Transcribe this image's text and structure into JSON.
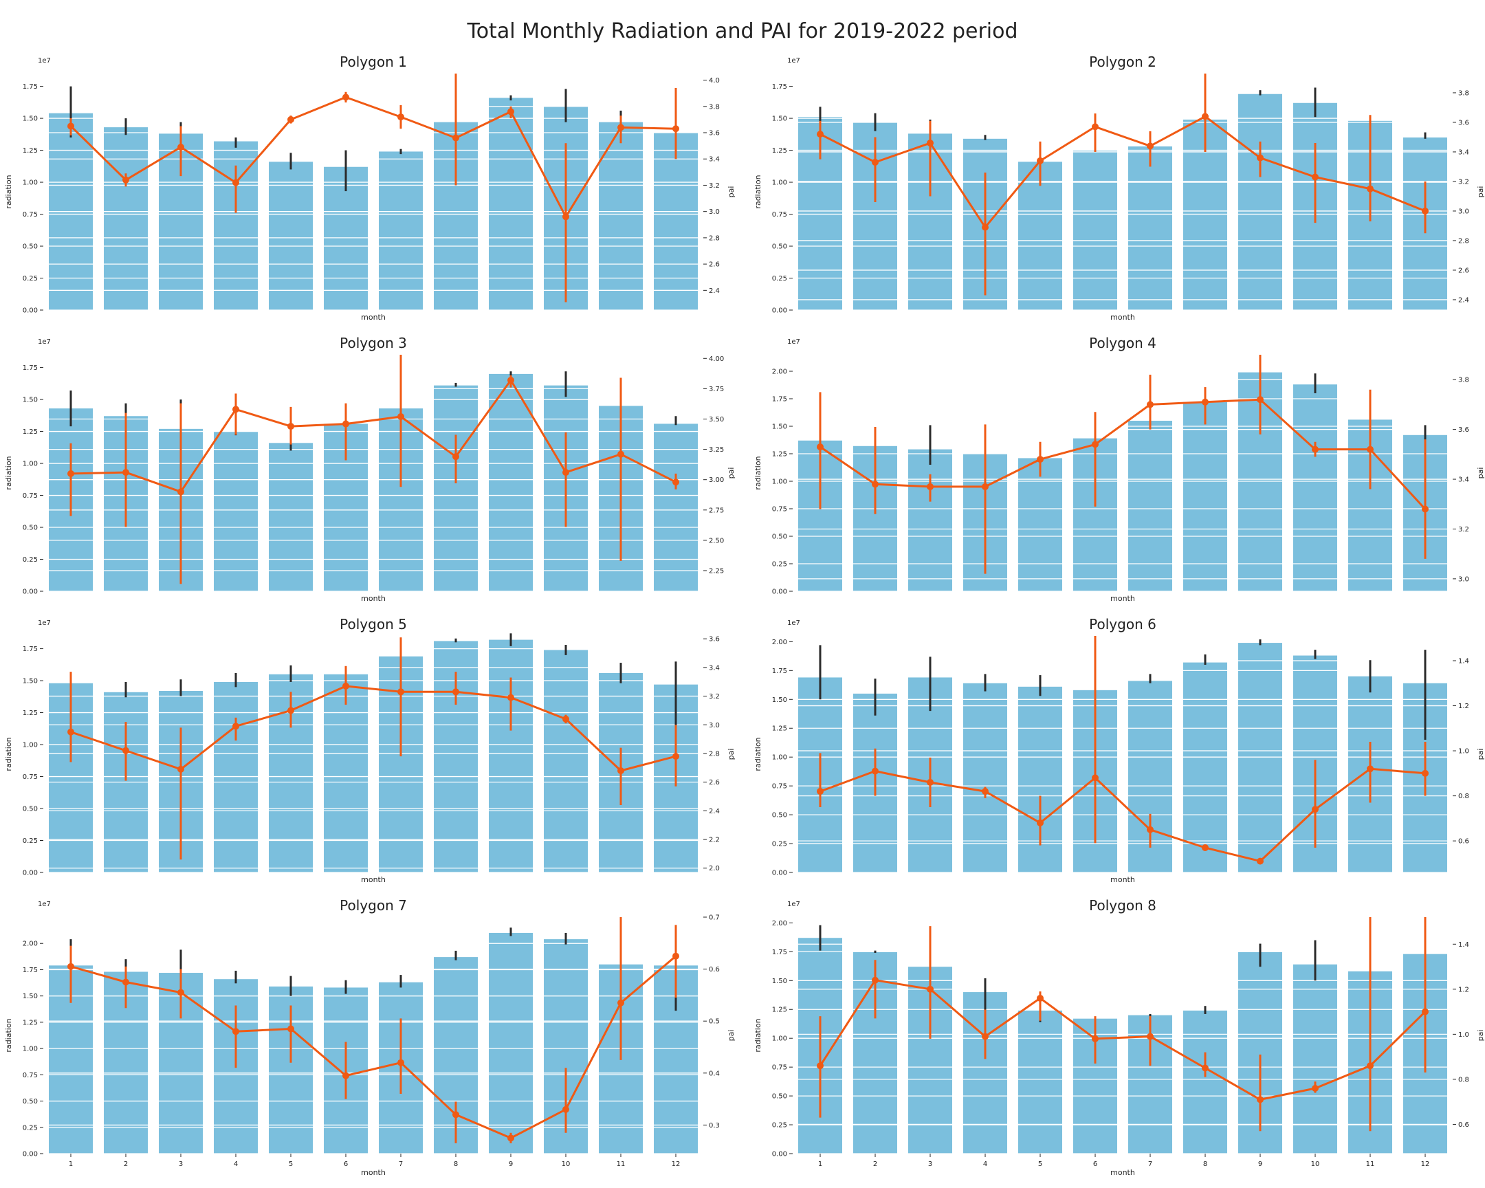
{
  "title": "Total Monthly Radiation and PAI for 2019-2022 period",
  "colors": {
    "bar": "#7bbfdd",
    "line": "#f05a14",
    "err_bar": "#2b2b2b",
    "grid": "#ffffff",
    "text": "#222222"
  },
  "chart_data": [
    {
      "type": "bar",
      "title": "Polygon 1",
      "xlabel": "month",
      "ylabel": "radiation",
      "y2label": "pai",
      "offset_text": "1e7",
      "show_x_ticks": false,
      "categories": [
        "1",
        "2",
        "3",
        "4",
        "5",
        "6",
        "7",
        "8",
        "9",
        "10",
        "11",
        "12"
      ],
      "ylim": [
        0,
        1.85
      ],
      "yticks": [
        "0.00",
        "0.25",
        "0.50",
        "0.75",
        "1.00",
        "1.25",
        "1.50",
        "1.75"
      ],
      "y2lim": [
        2.25,
        4.05
      ],
      "y2ticks": [
        "2.4",
        "2.6",
        "2.8",
        "3.0",
        "3.2",
        "3.4",
        "3.6",
        "3.8",
        "4.0"
      ],
      "series": [
        {
          "name": "radiation",
          "axis": "left",
          "values": [
            1.54,
            1.43,
            1.38,
            1.32,
            1.16,
            1.12,
            1.24,
            1.47,
            1.66,
            1.59,
            1.47,
            1.39
          ],
          "err_low": [
            1.35,
            1.37,
            1.3,
            1.27,
            1.1,
            0.93,
            1.22,
            1.4,
            1.64,
            1.47,
            1.4,
            1.38
          ],
          "err_high": [
            1.75,
            1.5,
            1.47,
            1.35,
            1.23,
            1.25,
            1.26,
            1.5,
            1.68,
            1.73,
            1.56,
            1.4
          ]
        },
        {
          "name": "pai",
          "axis": "right",
          "values": [
            3.65,
            3.24,
            3.49,
            3.22,
            3.7,
            3.87,
            3.72,
            3.56,
            3.76,
            2.96,
            3.64,
            3.63
          ],
          "err_low": [
            3.58,
            3.19,
            3.27,
            2.99,
            3.67,
            3.83,
            3.63,
            3.2,
            3.71,
            2.31,
            3.52,
            3.4
          ],
          "err_high": [
            3.71,
            3.29,
            3.65,
            3.35,
            3.73,
            3.91,
            3.81,
            4.05,
            3.8,
            3.52,
            3.73,
            3.94
          ]
        }
      ]
    },
    {
      "type": "bar",
      "title": "Polygon 2",
      "xlabel": "month",
      "ylabel": "radiation",
      "y2label": "pai",
      "offset_text": "1e7",
      "show_x_ticks": false,
      "categories": [
        "1",
        "2",
        "3",
        "4",
        "5",
        "6",
        "7",
        "8",
        "9",
        "10",
        "11",
        "12"
      ],
      "ylim": [
        0,
        1.85
      ],
      "yticks": [
        "0.00",
        "0.25",
        "0.50",
        "0.75",
        "1.00",
        "1.25",
        "1.50",
        "1.75"
      ],
      "y2lim": [
        2.33,
        3.93
      ],
      "y2ticks": [
        "2.4",
        "2.6",
        "2.8",
        "3.0",
        "3.2",
        "3.4",
        "3.6",
        "3.8"
      ],
      "series": [
        {
          "name": "radiation",
          "axis": "left",
          "values": [
            1.51,
            1.47,
            1.38,
            1.34,
            1.16,
            1.25,
            1.28,
            1.49,
            1.69,
            1.62,
            1.48,
            1.35
          ],
          "err_low": [
            1.46,
            1.4,
            1.32,
            1.33,
            1.15,
            1.24,
            1.26,
            1.46,
            1.68,
            1.51,
            1.47,
            1.34
          ],
          "err_high": [
            1.59,
            1.54,
            1.49,
            1.37,
            1.17,
            1.26,
            1.38,
            1.52,
            1.72,
            1.74,
            1.49,
            1.39
          ]
        },
        {
          "name": "pai",
          "axis": "right",
          "values": [
            3.52,
            3.33,
            3.46,
            2.89,
            3.34,
            3.57,
            3.44,
            3.64,
            3.36,
            3.23,
            3.15,
            3.0
          ],
          "err_low": [
            3.35,
            3.06,
            3.1,
            2.43,
            3.17,
            3.4,
            3.3,
            3.4,
            3.23,
            2.92,
            2.93,
            2.85
          ],
          "err_high": [
            3.61,
            3.5,
            3.61,
            3.26,
            3.47,
            3.66,
            3.54,
            3.93,
            3.47,
            3.46,
            3.65,
            3.2
          ]
        }
      ]
    },
    {
      "type": "bar",
      "title": "Polygon 3",
      "xlabel": "month",
      "ylabel": "radiation",
      "y2label": "pai",
      "offset_text": "1e7",
      "show_x_ticks": false,
      "categories": [
        "1",
        "2",
        "3",
        "4",
        "5",
        "6",
        "7",
        "8",
        "9",
        "10",
        "11",
        "12"
      ],
      "ylim": [
        0,
        1.85
      ],
      "yticks": [
        "0.00",
        "0.25",
        "0.50",
        "0.75",
        "1.00",
        "1.25",
        "1.50",
        "1.75"
      ],
      "y2lim": [
        2.08,
        4.03
      ],
      "y2ticks": [
        "2.25",
        "2.50",
        "2.75",
        "3.00",
        "3.25",
        "3.50",
        "3.75",
        "4.00"
      ],
      "series": [
        {
          "name": "radiation",
          "axis": "left",
          "values": [
            1.43,
            1.37,
            1.27,
            1.25,
            1.16,
            1.31,
            1.43,
            1.61,
            1.7,
            1.61,
            1.45,
            1.31
          ],
          "err_low": [
            1.29,
            1.3,
            1.1,
            1.22,
            1.1,
            1.28,
            1.42,
            1.6,
            1.67,
            1.52,
            1.42,
            1.3
          ],
          "err_high": [
            1.57,
            1.47,
            1.5,
            1.29,
            1.17,
            1.33,
            1.46,
            1.63,
            1.72,
            1.72,
            1.48,
            1.37
          ]
        },
        {
          "name": "pai",
          "axis": "right",
          "values": [
            3.05,
            3.06,
            2.9,
            3.58,
            3.44,
            3.46,
            3.52,
            3.19,
            3.82,
            3.06,
            3.21,
            2.98
          ],
          "err_low": [
            2.7,
            2.61,
            2.14,
            3.37,
            3.29,
            3.16,
            2.94,
            2.97,
            3.76,
            2.61,
            2.33,
            2.92
          ],
          "err_high": [
            3.3,
            3.55,
            3.63,
            3.71,
            3.6,
            3.63,
            4.03,
            3.37,
            3.86,
            3.39,
            3.84,
            3.05
          ]
        }
      ]
    },
    {
      "type": "bar",
      "title": "Polygon 4",
      "xlabel": "month",
      "ylabel": "radiation",
      "y2label": "pai",
      "offset_text": "1e7",
      "show_x_ticks": false,
      "categories": [
        "1",
        "2",
        "3",
        "4",
        "5",
        "6",
        "7",
        "8",
        "9",
        "10",
        "11",
        "12"
      ],
      "ylim": [
        0,
        2.15
      ],
      "yticks": [
        "0.00",
        "0.25",
        "0.50",
        "0.75",
        "1.00",
        "1.25",
        "1.50",
        "1.75",
        "2.00"
      ],
      "y2lim": [
        2.95,
        3.9
      ],
      "y2ticks": [
        "3.0",
        "3.2",
        "3.4",
        "3.6",
        "3.8"
      ],
      "series": [
        {
          "name": "radiation",
          "axis": "left",
          "values": [
            1.37,
            1.32,
            1.29,
            1.25,
            1.21,
            1.39,
            1.55,
            1.72,
            1.99,
            1.88,
            1.56,
            1.42
          ],
          "err_low": [
            1.35,
            1.31,
            1.15,
            1.24,
            1.2,
            1.38,
            1.54,
            1.71,
            1.97,
            1.8,
            1.55,
            1.35
          ],
          "err_high": [
            1.38,
            1.33,
            1.51,
            1.26,
            1.22,
            1.4,
            1.56,
            1.74,
            2.02,
            1.98,
            1.57,
            1.51
          ]
        },
        {
          "name": "pai",
          "axis": "right",
          "values": [
            3.53,
            3.38,
            3.37,
            3.37,
            3.48,
            3.54,
            3.7,
            3.71,
            3.72,
            3.52,
            3.52,
            3.28
          ],
          "err_low": [
            3.28,
            3.26,
            3.31,
            3.02,
            3.41,
            3.29,
            3.6,
            3.62,
            3.58,
            3.49,
            3.36,
            3.08
          ],
          "err_high": [
            3.75,
            3.61,
            3.42,
            3.62,
            3.55,
            3.67,
            3.82,
            3.77,
            3.9,
            3.55,
            3.76,
            3.56
          ]
        }
      ]
    },
    {
      "type": "bar",
      "title": "Polygon 5",
      "xlabel": "month",
      "ylabel": "radiation",
      "y2label": "pai",
      "offset_text": "1e7",
      "show_x_ticks": false,
      "categories": [
        "1",
        "2",
        "3",
        "4",
        "5",
        "6",
        "7",
        "8",
        "9",
        "10",
        "11",
        "12"
      ],
      "ylim": [
        0,
        1.85
      ],
      "yticks": [
        "0.00",
        "0.25",
        "0.50",
        "0.75",
        "1.00",
        "1.25",
        "1.50",
        "1.75"
      ],
      "y2lim": [
        1.97,
        3.62
      ],
      "y2ticks": [
        "2.0",
        "2.2",
        "2.4",
        "2.6",
        "2.8",
        "3.0",
        "3.2",
        "3.4",
        "3.6"
      ],
      "series": [
        {
          "name": "radiation",
          "axis": "left",
          "values": [
            1.48,
            1.41,
            1.42,
            1.49,
            1.55,
            1.55,
            1.69,
            1.81,
            1.82,
            1.74,
            1.56,
            1.47
          ],
          "err_low": [
            1.47,
            1.37,
            1.38,
            1.45,
            1.49,
            1.54,
            1.68,
            1.8,
            1.77,
            1.7,
            1.48,
            1.14
          ],
          "err_high": [
            1.49,
            1.49,
            1.51,
            1.56,
            1.62,
            1.56,
            1.7,
            1.83,
            1.87,
            1.78,
            1.64,
            1.65
          ]
        },
        {
          "name": "pai",
          "axis": "right",
          "values": [
            2.95,
            2.82,
            2.69,
            2.99,
            3.1,
            3.27,
            3.23,
            3.23,
            3.19,
            3.04,
            2.68,
            2.78
          ],
          "err_low": [
            2.74,
            2.61,
            2.06,
            2.89,
            2.98,
            3.14,
            2.78,
            3.14,
            2.96,
            3.01,
            2.44,
            2.57
          ],
          "err_high": [
            3.37,
            3.02,
            2.98,
            3.05,
            3.23,
            3.41,
            3.61,
            3.37,
            3.33,
            3.07,
            2.84,
            3.0
          ]
        }
      ]
    },
    {
      "type": "bar",
      "title": "Polygon 6",
      "xlabel": "month",
      "ylabel": "radiation",
      "y2label": "pai",
      "offset_text": "1e7",
      "show_x_ticks": false,
      "categories": [
        "1",
        "2",
        "3",
        "4",
        "5",
        "6",
        "7",
        "8",
        "9",
        "10",
        "11",
        "12"
      ],
      "ylim": [
        0,
        2.05
      ],
      "yticks": [
        "0.00",
        "0.25",
        "0.50",
        "0.75",
        "1.00",
        "1.25",
        "1.50",
        "1.75",
        "2.00"
      ],
      "y2lim": [
        0.46,
        1.51
      ],
      "y2ticks": [
        "0.6",
        "0.8",
        "1.0",
        "1.2",
        "1.4"
      ],
      "series": [
        {
          "name": "radiation",
          "axis": "left",
          "values": [
            1.69,
            1.55,
            1.69,
            1.64,
            1.61,
            1.58,
            1.66,
            1.82,
            1.99,
            1.88,
            1.7,
            1.64
          ],
          "err_low": [
            1.5,
            1.36,
            1.4,
            1.57,
            1.53,
            1.55,
            1.64,
            1.8,
            1.97,
            1.85,
            1.56,
            1.15
          ],
          "err_high": [
            1.97,
            1.68,
            1.87,
            1.72,
            1.71,
            1.6,
            1.72,
            1.89,
            2.02,
            1.93,
            1.84,
            1.93
          ]
        },
        {
          "name": "pai",
          "axis": "right",
          "values": [
            0.82,
            0.91,
            0.86,
            0.82,
            0.68,
            0.88,
            0.65,
            0.57,
            0.51,
            0.74,
            0.92,
            0.9
          ],
          "err_low": [
            0.75,
            0.8,
            0.75,
            0.79,
            0.58,
            0.59,
            0.57,
            0.56,
            0.5,
            0.57,
            0.77,
            0.8
          ],
          "err_high": [
            0.99,
            1.01,
            0.97,
            0.84,
            0.8,
            1.51,
            0.72,
            0.58,
            0.52,
            0.96,
            1.04,
            1.04
          ]
        }
      ]
    },
    {
      "type": "bar",
      "title": "Polygon 7",
      "xlabel": "month",
      "ylabel": "radiation",
      "y2label": "pai",
      "offset_text": "1e7",
      "show_x_ticks": true,
      "categories": [
        "1",
        "2",
        "3",
        "4",
        "5",
        "6",
        "7",
        "8",
        "9",
        "10",
        "11",
        "12"
      ],
      "ylim": [
        0,
        2.25
      ],
      "yticks": [
        "0.00",
        "0.25",
        "0.50",
        "0.75",
        "1.00",
        "1.25",
        "1.50",
        "1.75",
        "2.00"
      ],
      "y2lim": [
        0.245,
        0.7
      ],
      "y2ticks": [
        "0.3",
        "0.4",
        "0.5",
        "0.6",
        "0.7"
      ],
      "series": [
        {
          "name": "radiation",
          "axis": "left",
          "values": [
            1.79,
            1.73,
            1.72,
            1.66,
            1.59,
            1.58,
            1.63,
            1.87,
            2.1,
            2.04,
            1.8,
            1.79
          ],
          "err_low": [
            1.73,
            1.64,
            1.55,
            1.62,
            1.5,
            1.52,
            1.58,
            1.84,
            2.07,
            1.99,
            1.79,
            1.36
          ],
          "err_high": [
            2.04,
            1.85,
            1.94,
            1.74,
            1.69,
            1.65,
            1.7,
            1.93,
            2.15,
            2.1,
            1.81,
            1.9
          ]
        },
        {
          "name": "pai",
          "axis": "right",
          "values": [
            0.605,
            0.575,
            0.555,
            0.48,
            0.485,
            0.395,
            0.42,
            0.32,
            0.275,
            0.33,
            0.535,
            0.625
          ],
          "err_low": [
            0.535,
            0.525,
            0.505,
            0.41,
            0.42,
            0.35,
            0.36,
            0.265,
            0.265,
            0.285,
            0.425,
            0.545
          ],
          "err_high": [
            0.645,
            0.605,
            0.6,
            0.53,
            0.53,
            0.46,
            0.505,
            0.345,
            0.285,
            0.41,
            0.7,
            0.685
          ]
        }
      ]
    },
    {
      "type": "bar",
      "title": "Polygon 8",
      "xlabel": "month",
      "ylabel": "radiation",
      "y2label": "pai",
      "offset_text": "1e7",
      "show_x_ticks": true,
      "categories": [
        "1",
        "2",
        "3",
        "4",
        "5",
        "6",
        "7",
        "8",
        "9",
        "10",
        "11",
        "12"
      ],
      "ylim": [
        0,
        2.05
      ],
      "yticks": [
        "0.00",
        "0.25",
        "0.50",
        "0.75",
        "1.00",
        "1.25",
        "1.50",
        "1.75",
        "2.00"
      ],
      "y2lim": [
        0.47,
        1.52
      ],
      "y2ticks": [
        "0.6",
        "0.8",
        "1.0",
        "1.2",
        "1.4"
      ],
      "series": [
        {
          "name": "radiation",
          "axis": "left",
          "values": [
            1.87,
            1.75,
            1.62,
            1.4,
            1.24,
            1.17,
            1.2,
            1.24,
            1.75,
            1.64,
            1.58,
            1.73
          ],
          "err_low": [
            1.76,
            1.74,
            1.61,
            1.2,
            1.14,
            1.16,
            1.19,
            1.21,
            1.62,
            1.5,
            1.13,
            1.72
          ],
          "err_high": [
            1.98,
            1.76,
            1.63,
            1.52,
            1.32,
            1.18,
            1.21,
            1.28,
            1.82,
            1.85,
            1.93,
            2.04
          ]
        },
        {
          "name": "pai",
          "axis": "right",
          "values": [
            0.86,
            1.24,
            1.2,
            0.99,
            1.16,
            0.98,
            0.99,
            0.85,
            0.71,
            0.76,
            0.86,
            1.1
          ],
          "err_low": [
            0.63,
            1.07,
            0.98,
            0.89,
            1.06,
            0.87,
            0.86,
            0.81,
            0.57,
            0.74,
            0.57,
            0.83
          ],
          "err_high": [
            1.08,
            1.33,
            1.48,
            1.11,
            1.19,
            1.08,
            1.08,
            0.92,
            0.91,
            0.79,
            1.52,
            1.52
          ]
        }
      ]
    }
  ]
}
